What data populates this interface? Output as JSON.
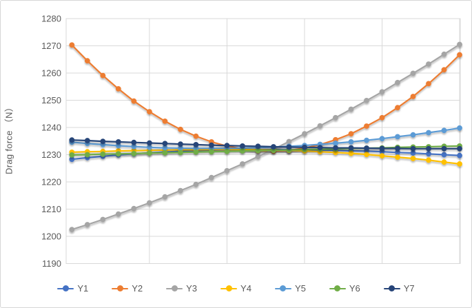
{
  "chart_data": {
    "type": "line",
    "title": "",
    "xlabel": "",
    "ylabel": "Drag force （N）",
    "ylim": [
      1190,
      1280
    ],
    "ytick_step": 10,
    "yticks": [
      1280,
      1270,
      1260,
      1250,
      1240,
      1230,
      1220,
      1210,
      1200,
      1190
    ],
    "x_count": 26,
    "x_tick_labels_visible": false,
    "grid": true,
    "vertical_gridline_every": 5,
    "legend_position": "bottom",
    "marker": "circle",
    "axis_text_color": "#595959",
    "gridline_color": "#d9d9d9",
    "series": [
      {
        "name": "Y1",
        "color": "#4472C4",
        "values": [
          1228.3,
          1228.9,
          1229.4,
          1229.9,
          1230.3,
          1230.7,
          1231.0,
          1231.3,
          1231.5,
          1231.7,
          1231.8,
          1231.9,
          1231.9,
          1231.9,
          1231.8,
          1231.8,
          1231.7,
          1231.6,
          1231.4,
          1231.3,
          1231.1,
          1230.8,
          1230.6,
          1230.3,
          1230.0,
          1229.7
        ]
      },
      {
        "name": "Y2",
        "color": "#ED7D31",
        "values": [
          1270.3,
          1264.5,
          1259.1,
          1254.2,
          1249.7,
          1245.8,
          1242.3,
          1239.3,
          1236.8,
          1234.7,
          1233.2,
          1232.1,
          1231.4,
          1231.3,
          1231.6,
          1232.4,
          1233.7,
          1235.5,
          1237.7,
          1240.5,
          1243.6,
          1247.3,
          1251.4,
          1256.1,
          1261.2,
          1266.7
        ]
      },
      {
        "name": "Y3",
        "color": "#A5A5A5",
        "values": [
          1202.5,
          1204.3,
          1206.2,
          1208.2,
          1210.2,
          1212.3,
          1214.5,
          1216.8,
          1219.1,
          1221.6,
          1224.1,
          1226.6,
          1229.3,
          1232.0,
          1234.8,
          1237.7,
          1240.6,
          1243.6,
          1246.7,
          1249.9,
          1253.1,
          1256.5,
          1259.9,
          1263.3,
          1266.9,
          1270.5
        ]
      },
      {
        "name": "Y4",
        "color": "#FFC000",
        "values": [
          1230.9,
          1231.1,
          1231.2,
          1231.4,
          1231.5,
          1231.6,
          1231.7,
          1231.8,
          1231.8,
          1231.9,
          1231.9,
          1231.9,
          1231.8,
          1231.7,
          1231.6,
          1231.4,
          1231.1,
          1230.8,
          1230.5,
          1230.1,
          1229.6,
          1229.1,
          1228.6,
          1228.0,
          1227.3,
          1226.6
        ]
      },
      {
        "name": "Y5",
        "color": "#5B9BD5",
        "values": [
          1234.6,
          1234.1,
          1233.7,
          1233.3,
          1233.0,
          1232.7,
          1232.5,
          1232.4,
          1232.3,
          1232.3,
          1232.3,
          1232.4,
          1232.6,
          1232.8,
          1233.1,
          1233.4,
          1233.8,
          1234.2,
          1234.7,
          1235.3,
          1235.9,
          1236.6,
          1237.3,
          1238.1,
          1238.9,
          1239.8
        ]
      },
      {
        "name": "Y6",
        "color": "#70AD47",
        "values": [
          1229.9,
          1230.0,
          1230.2,
          1230.3,
          1230.4,
          1230.6,
          1230.7,
          1230.8,
          1231.0,
          1231.1,
          1231.2,
          1231.4,
          1231.5,
          1231.6,
          1231.7,
          1231.9,
          1232.0,
          1232.1,
          1232.3,
          1232.4,
          1232.5,
          1232.7,
          1232.8,
          1232.9,
          1233.1,
          1233.2
        ]
      },
      {
        "name": "Y7",
        "color": "#264478",
        "values": [
          1235.4,
          1235.2,
          1234.9,
          1234.7,
          1234.5,
          1234.3,
          1234.1,
          1233.9,
          1233.7,
          1233.5,
          1233.4,
          1233.2,
          1233.1,
          1232.9,
          1232.8,
          1232.7,
          1232.6,
          1232.5,
          1232.5,
          1232.4,
          1232.3,
          1232.3,
          1232.2,
          1232.2,
          1232.2,
          1232.2
        ]
      }
    ]
  }
}
